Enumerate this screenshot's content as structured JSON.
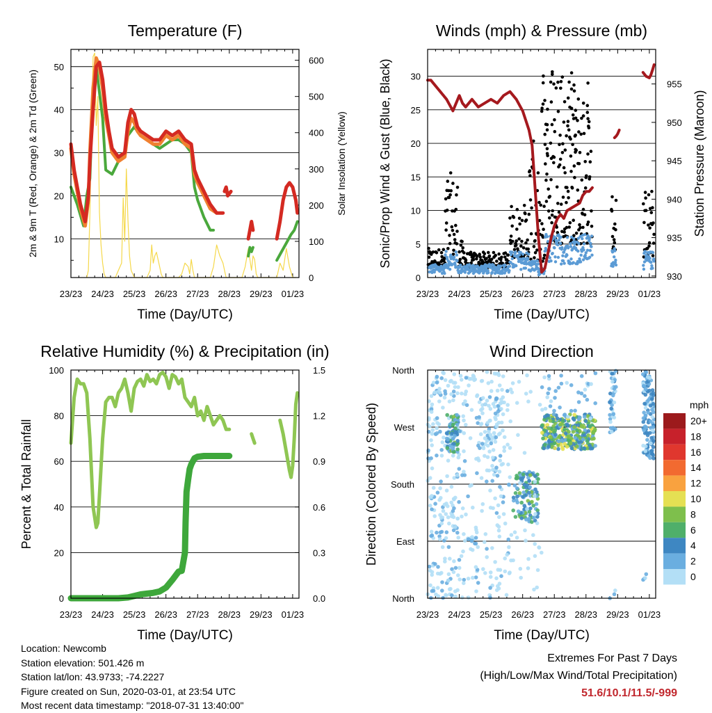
{
  "colors": {
    "temp_2m": "#d42a22",
    "temp_9m": "#f08030",
    "dewpoint": "#4aa83c",
    "insolation": "#f5d84a",
    "sonic_wind": "#5b9bd5",
    "gust": "#000000",
    "pressure": "#a5191e",
    "rh": "#8fc653",
    "precip": "#3ea73b",
    "extremes_values": "#c1272d"
  },
  "chart_data": [
    {
      "id": "temperature",
      "type": "line",
      "title": "Temperature (F)",
      "xlabel": "Time (Day/UTC)",
      "ylabel": "2m & 9m T (Red, Orange) & 2m Td (Green)",
      "y2label": "Solar Insolation (Yellow)",
      "x_ticks": [
        "23/23",
        "24/23",
        "25/23",
        "26/23",
        "27/23",
        "28/23",
        "29/23",
        "01/23"
      ],
      "xlim": [
        0,
        7.2
      ],
      "ylim": [
        1,
        54
      ],
      "y_ticks": [
        10,
        20,
        30,
        40,
        50
      ],
      "y2lim": [
        0,
        630
      ],
      "y2_ticks": [
        0,
        100,
        200,
        300,
        400,
        500,
        600
      ],
      "series": [
        {
          "key": "t2m",
          "x": [
            0,
            0.1,
            0.2,
            0.3,
            0.45,
            0.55,
            0.6,
            0.7,
            0.8,
            0.9,
            1.0,
            1.1,
            1.2,
            1.3,
            1.5,
            1.7,
            1.8,
            1.9,
            2.0,
            2.1,
            2.2,
            2.4,
            2.6,
            2.8,
            3.0,
            3.2,
            3.4,
            3.6,
            3.8,
            3.9,
            4.0,
            4.2,
            4.4,
            4.6,
            4.8
          ],
          "y": [
            32,
            26,
            22,
            18,
            14,
            20,
            28,
            40,
            50,
            51,
            47,
            40,
            35,
            31,
            29,
            30,
            37,
            40,
            39,
            36,
            35,
            34,
            33,
            33,
            35,
            34,
            35,
            33,
            32,
            26,
            24,
            21,
            18,
            16,
            16
          ]
        },
        {
          "key": "t2m_b",
          "x": [
            4.85,
            4.9,
            4.95,
            5.05
          ],
          "y": [
            21,
            22,
            20,
            21
          ]
        },
        {
          "key": "t2m_c",
          "x": [
            5.6,
            5.65,
            5.7,
            5.75
          ],
          "y": [
            10,
            12,
            14,
            12
          ]
        },
        {
          "key": "t2m_d",
          "x": [
            6.5,
            6.6,
            6.7,
            6.8,
            6.9,
            7.0,
            7.1,
            7.15
          ],
          "y": [
            10,
            14,
            19,
            22,
            23,
            22,
            19,
            16
          ]
        },
        {
          "key": "t9m",
          "x": [
            0,
            0.1,
            0.2,
            0.3,
            0.45,
            0.55,
            0.6,
            0.7,
            0.8,
            0.9,
            1.0,
            1.1,
            1.2,
            1.3,
            1.5,
            1.7,
            1.8,
            1.9,
            2.0,
            2.1,
            2.2,
            2.4,
            2.6,
            2.8,
            3.0,
            3.2,
            3.4,
            3.6,
            3.8,
            3.9,
            4.0,
            4.2,
            4.4,
            4.6
          ],
          "y": [
            31,
            25,
            21,
            17,
            13,
            19,
            30,
            45,
            52,
            50,
            45,
            38,
            34,
            30,
            28,
            29,
            35,
            38,
            37,
            35,
            34,
            33,
            32,
            32,
            34,
            33,
            34,
            32,
            31,
            25,
            23,
            20,
            17,
            16
          ]
        },
        {
          "key": "td",
          "x": [
            0,
            0.2,
            0.4,
            0.5,
            0.6,
            0.7,
            0.8,
            0.9,
            1.0,
            1.1,
            1.3,
            1.5,
            1.7,
            1.8,
            2.0,
            2.2,
            2.4,
            2.6,
            2.8,
            3.0,
            3.2,
            3.4,
            3.6,
            3.8,
            3.9,
            4.0,
            4.2,
            4.4,
            4.5
          ],
          "y": [
            22,
            18,
            13,
            20,
            24,
            45,
            50,
            44,
            38,
            26,
            25,
            28,
            30,
            34,
            36,
            34,
            33,
            32,
            31,
            32,
            33,
            33,
            32,
            30,
            22,
            19,
            15,
            12,
            12
          ]
        },
        {
          "key": "td_b",
          "x": [
            5.6,
            5.65,
            5.7,
            5.75
          ],
          "y": [
            6,
            8,
            7,
            8
          ]
        },
        {
          "key": "td_c",
          "x": [
            6.5,
            6.65,
            6.8,
            6.95,
            7.05,
            7.15
          ],
          "y": [
            5,
            7,
            9,
            11,
            12,
            14
          ]
        },
        {
          "key": "insolation",
          "axis": "y2",
          "x": [
            0.5,
            0.55,
            0.6,
            0.7,
            0.75,
            0.8,
            0.85,
            0.9,
            0.95,
            1.0,
            1.05,
            1.1,
            1.2,
            1.4,
            1.5,
            1.6,
            1.65,
            1.7,
            1.75,
            1.8,
            1.85,
            1.9,
            1.95,
            2.0,
            2.4,
            2.5,
            2.55,
            2.6,
            2.65,
            2.7,
            2.75,
            2.8,
            2.85,
            2.9,
            3.4,
            3.5,
            3.6,
            3.7,
            3.75,
            3.8,
            3.85,
            3.9,
            4.4,
            4.5,
            4.6,
            4.7,
            4.8,
            4.85,
            4.9,
            5.4,
            5.5,
            5.6,
            5.7,
            5.75,
            5.8,
            5.85,
            5.9,
            6.4,
            6.5,
            6.6,
            6.7,
            6.8,
            6.9,
            7.0,
            7.1
          ],
          "y": [
            0,
            20,
            180,
            610,
            620,
            420,
            500,
            180,
            90,
            40,
            10,
            0,
            0,
            0,
            20,
            40,
            220,
            100,
            300,
            160,
            60,
            20,
            10,
            0,
            0,
            20,
            90,
            40,
            60,
            70,
            50,
            30,
            10,
            0,
            0,
            10,
            40,
            30,
            10,
            50,
            20,
            0,
            0,
            30,
            90,
            60,
            40,
            20,
            0,
            0,
            30,
            80,
            20,
            60,
            50,
            10,
            0,
            0,
            0,
            40,
            20,
            80,
            30,
            0,
            0
          ]
        }
      ]
    },
    {
      "id": "winds",
      "type": "scatter",
      "title": "Winds (mph) & Pressure (mb)",
      "xlabel": "Time (Day/UTC)",
      "ylabel": "Sonic/Prop Wind & Gust (Blue, Black)",
      "y2label": "Station Pressure (Maroon)",
      "x_ticks": [
        "23/23",
        "24/23",
        "25/23",
        "26/23",
        "27/23",
        "28/23",
        "29/23",
        "01/23"
      ],
      "xlim": [
        0,
        7.2
      ],
      "ylim": [
        0,
        34
      ],
      "y_ticks": [
        0,
        5,
        10,
        15,
        20,
        25,
        30
      ],
      "y2lim": [
        929.8,
        959.5
      ],
      "y2_ticks": [
        930,
        935,
        940,
        945,
        950,
        955
      ],
      "series": [
        {
          "key": "pressure",
          "axis": "y2",
          "x": [
            0,
            0.1,
            0.2,
            0.4,
            0.6,
            0.8,
            0.9,
            1.0,
            1.1,
            1.2,
            1.4,
            1.6,
            1.8,
            2.0,
            2.2,
            2.4,
            2.6,
            2.8,
            3.0,
            3.2,
            3.3,
            3.4,
            3.5,
            3.6,
            3.7,
            3.8,
            3.9,
            4.0,
            4.1,
            4.2,
            4.3,
            4.4,
            4.6,
            4.8,
            4.9,
            5.0,
            5.1,
            5.2
          ],
          "y": [
            955.5,
            955.5,
            955.0,
            954.0,
            953.0,
            951.5,
            952.5,
            953.5,
            952.5,
            952.0,
            953.0,
            952.0,
            952.5,
            953.0,
            952.5,
            953.5,
            954.0,
            953.0,
            951.5,
            949.0,
            947.0,
            941.0,
            935.0,
            930.5,
            931.0,
            933.0,
            935.0,
            936.5,
            937.5,
            938.0,
            937.5,
            938.5,
            939.0,
            939.5,
            940.5,
            941.0,
            941.0,
            941.5
          ]
        },
        {
          "key": "pressure_b",
          "axis": "y2",
          "x": [
            5.9,
            5.95,
            6.0,
            6.05
          ],
          "y": [
            948,
            948.2,
            948.5,
            949
          ]
        },
        {
          "key": "pressure_c",
          "axis": "y2",
          "x": [
            6.8,
            6.9,
            7.0,
            7.05,
            7.1,
            7.15
          ],
          "y": [
            956.5,
            956,
            955.8,
            956.2,
            956.8,
            957.5
          ]
        }
      ]
    },
    {
      "id": "humidity",
      "type": "line",
      "title": "Relative Humidity (%) & Precipitation (in)",
      "xlabel": "Time (Day/UTC)",
      "ylabel": "Percent & Total Rainfall",
      "x_ticks": [
        "23/23",
        "24/23",
        "25/23",
        "26/23",
        "27/23",
        "28/23",
        "29/23",
        "01/23"
      ],
      "xlim": [
        0,
        7.2
      ],
      "ylim": [
        0,
        100
      ],
      "y_ticks": [
        0,
        20,
        40,
        60,
        80,
        100
      ],
      "y2lim": [
        0,
        1.5
      ],
      "y2_ticks": [
        "0.0",
        "0.3",
        "0.6",
        "0.9",
        "1.2",
        "1.5"
      ],
      "series": [
        {
          "key": "rh",
          "x": [
            0,
            0.1,
            0.2,
            0.3,
            0.4,
            0.5,
            0.6,
            0.7,
            0.8,
            0.85,
            0.9,
            1.0,
            1.1,
            1.2,
            1.3,
            1.4,
            1.5,
            1.6,
            1.7,
            1.8,
            1.9,
            2.0,
            2.1,
            2.2,
            2.3,
            2.4,
            2.5,
            2.6,
            2.7,
            2.8,
            2.9,
            3.0,
            3.1,
            3.2,
            3.3,
            3.4,
            3.5,
            3.6,
            3.7,
            3.8,
            3.9,
            4.0,
            4.1,
            4.2,
            4.3,
            4.5,
            4.7,
            4.8,
            4.9,
            5.0
          ],
          "y": [
            68,
            88,
            96,
            94,
            94,
            90,
            70,
            40,
            31,
            33,
            45,
            70,
            86,
            88,
            88,
            84,
            90,
            92,
            96,
            90,
            82,
            92,
            95,
            96,
            93,
            98,
            95,
            96,
            94,
            98,
            99,
            97,
            92,
            98,
            97,
            94,
            96,
            88,
            86,
            84,
            88,
            80,
            82,
            78,
            84,
            76,
            80,
            78,
            74,
            74
          ]
        },
        {
          "key": "rh_b",
          "x": [
            5.7,
            5.75,
            5.8
          ],
          "y": [
            72,
            70,
            68
          ]
        },
        {
          "key": "rh_c",
          "x": [
            6.6,
            6.7,
            6.8,
            6.9,
            6.95,
            7.0,
            7.05,
            7.1,
            7.15
          ],
          "y": [
            78,
            72,
            64,
            56,
            53,
            58,
            70,
            85,
            90
          ]
        },
        {
          "key": "precip",
          "axis": "y2",
          "x": [
            0,
            0.5,
            1.0,
            1.5,
            1.8,
            2.0,
            2.2,
            2.4,
            2.6,
            2.8,
            3.0,
            3.2,
            3.4,
            3.5,
            3.6,
            3.62,
            3.65,
            3.7,
            3.75,
            3.8,
            3.85,
            3.9,
            4.0,
            4.2,
            4.4,
            4.6,
            4.8,
            5.0
          ],
          "y": [
            0,
            0,
            0,
            0,
            0.005,
            0.015,
            0.025,
            0.03,
            0.035,
            0.045,
            0.07,
            0.12,
            0.175,
            0.18,
            0.3,
            0.5,
            0.7,
            0.78,
            0.85,
            0.88,
            0.9,
            0.92,
            0.93,
            0.935,
            0.935,
            0.935,
            0.935,
            0.935
          ]
        }
      ]
    },
    {
      "id": "direction",
      "type": "scatter",
      "title": "Wind Direction",
      "xlabel": "Time (Day/UTC)",
      "ylabel": "Direction (Colored By Speed)",
      "x_ticks": [
        "23/23",
        "24/23",
        "25/23",
        "26/23",
        "27/23",
        "28/23",
        "29/23",
        "01/23"
      ],
      "xlim": [
        0,
        7.2
      ],
      "y_ticks": [
        "North",
        "East",
        "South",
        "West",
        "North"
      ],
      "colorbar_unit": "mph",
      "colorbar_labels": [
        "20+",
        "18",
        "16",
        "14",
        "12",
        "10",
        "8",
        "6",
        "4",
        "2",
        "0"
      ],
      "colorbar_colors": [
        "#9c1a1c",
        "#c7212b",
        "#e0372e",
        "#f26a30",
        "#f9a23f",
        "#e5e053",
        "#7ebf4c",
        "#4faf6a",
        "#3e87c2",
        "#6aaee0",
        "#b3dff6"
      ]
    }
  ],
  "info": {
    "location": "Location: Newcomb",
    "elevation": "Station elevation: 501.426 m",
    "latlon": "Station lat/lon: 43.9733; -74.2227",
    "created": "Figure created on Sun, 2020-03-01, at 23:54 UTC",
    "recent": "Most recent data timestamp: \"2018-07-31 13:40:00\""
  },
  "extremes": {
    "title": "Extremes For Past 7 Days",
    "subtitle": "(High/Low/Max Wind/Total Precipitation)",
    "values": "51.6/10.1/11.5/-999"
  }
}
